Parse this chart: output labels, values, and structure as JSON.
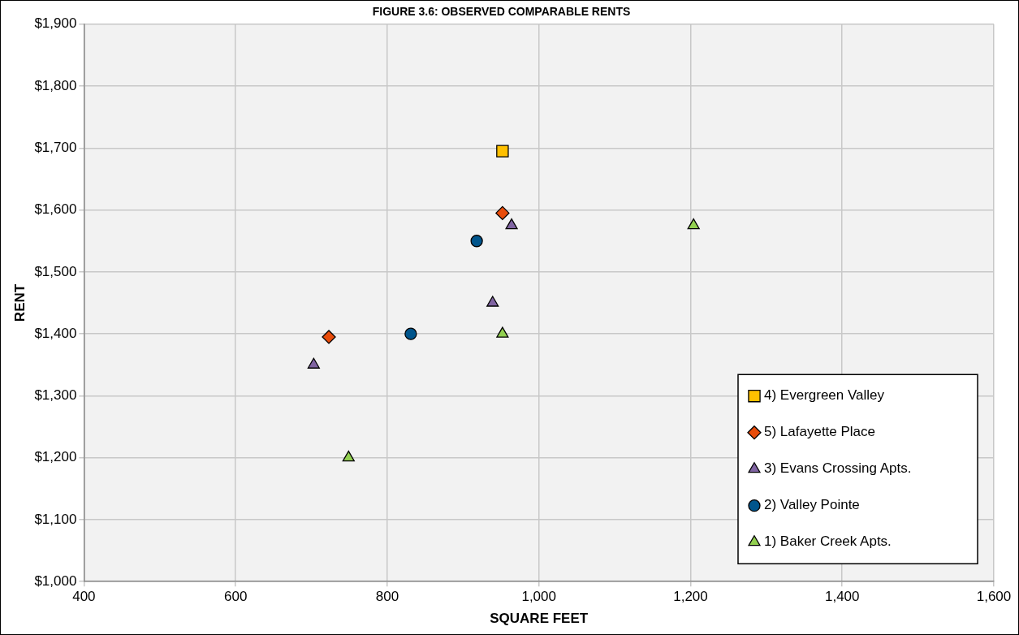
{
  "chart_data": {
    "type": "scatter",
    "title": "FIGURE 3.6: OBSERVED COMPARABLE RENTS",
    "xlabel": "SQUARE FEET",
    "ylabel": "RENT",
    "xlim": [
      400,
      1600
    ],
    "xticks": [
      {
        "value": 400,
        "label": "400"
      },
      {
        "value": 600,
        "label": "600"
      },
      {
        "value": 800,
        "label": "800"
      },
      {
        "value": 1000,
        "label": "1,000"
      },
      {
        "value": 1200,
        "label": "1,200"
      },
      {
        "value": 1400,
        "label": "1,400"
      },
      {
        "value": 1600,
        "label": "1,600"
      }
    ],
    "ylim": [
      1000,
      1900
    ],
    "yticks": [
      {
        "value": 1000,
        "label": "$1,000"
      },
      {
        "value": 1100,
        "label": "$1,100"
      },
      {
        "value": 1200,
        "label": "$1,200"
      },
      {
        "value": 1300,
        "label": "$1,300"
      },
      {
        "value": 1400,
        "label": "$1,400"
      },
      {
        "value": 1500,
        "label": "$1,500"
      },
      {
        "value": 1600,
        "label": "$1,600"
      },
      {
        "value": 1700,
        "label": "$1,700"
      },
      {
        "value": 1800,
        "label": "$1,800"
      },
      {
        "value": 1900,
        "label": "$1,900"
      }
    ],
    "grid": true,
    "legend": "bottom right",
    "series": [
      {
        "name": "4) Evergreen Valley",
        "color": "#ffc000",
        "marker": "square",
        "x": [
          952
        ],
        "values": [
          1695
        ]
      },
      {
        "name": "5) Lafayette Place",
        "color": "#e84c0a",
        "marker": "diamond",
        "x": [
          952,
          723
        ],
        "values": [
          1595,
          1395
        ]
      },
      {
        "name": "3) Evans Crossing Apts.",
        "color": "#8064a2",
        "marker": "triangle",
        "x": [
          964,
          939,
          703
        ],
        "values": [
          1575,
          1450,
          1350
        ]
      },
      {
        "name": "2) Valley Pointe",
        "color": "#00558c",
        "marker": "circle",
        "x": [
          918,
          831
        ],
        "values": [
          1550,
          1400
        ]
      },
      {
        "name": "1) Baker Creek Apts.",
        "color": "#92d050",
        "marker": "triangle",
        "x": [
          1204,
          952,
          749
        ],
        "values": [
          1575,
          1400,
          1200
        ]
      }
    ]
  }
}
